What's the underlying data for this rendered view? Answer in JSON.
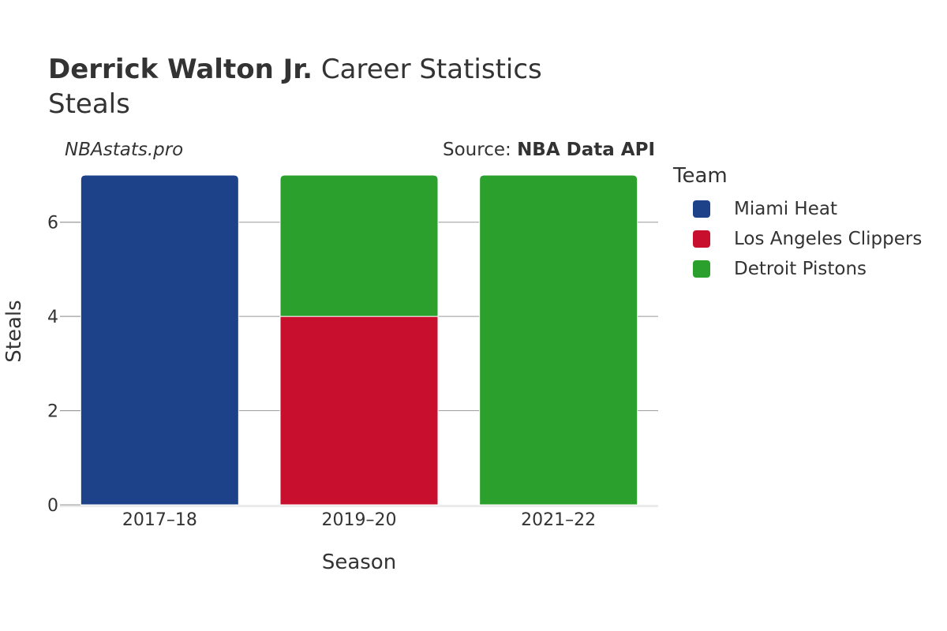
{
  "header": {
    "player": "Derrick Walton Jr.",
    "title_rest": "Career Statistics",
    "subtitle": "Steals",
    "credit": "NBAstats.pro",
    "source_prefix": "Source: ",
    "source_name": "NBA Data API"
  },
  "chart_data": {
    "type": "bar",
    "stacked": true,
    "title": "Derrick Walton Jr. Career Statistics",
    "subtitle": "Steals",
    "xlabel": "Season",
    "ylabel": "Steals",
    "categories": [
      "2017–18",
      "2019–20",
      "2021–22"
    ],
    "ylim": [
      0,
      7
    ],
    "yticks": [
      0,
      2,
      4,
      6
    ],
    "grid": true,
    "legend_title": "Team",
    "legend_position": "right",
    "series": [
      {
        "name": "Miami Heat",
        "color": "#1d428a",
        "values": [
          7,
          0,
          0
        ]
      },
      {
        "name": "Los Angeles Clippers",
        "color": "#c8102e",
        "values": [
          0,
          4,
          0
        ]
      },
      {
        "name": "Detroit Pistons",
        "color": "#2ca02c",
        "values": [
          0,
          3,
          7
        ]
      }
    ]
  }
}
